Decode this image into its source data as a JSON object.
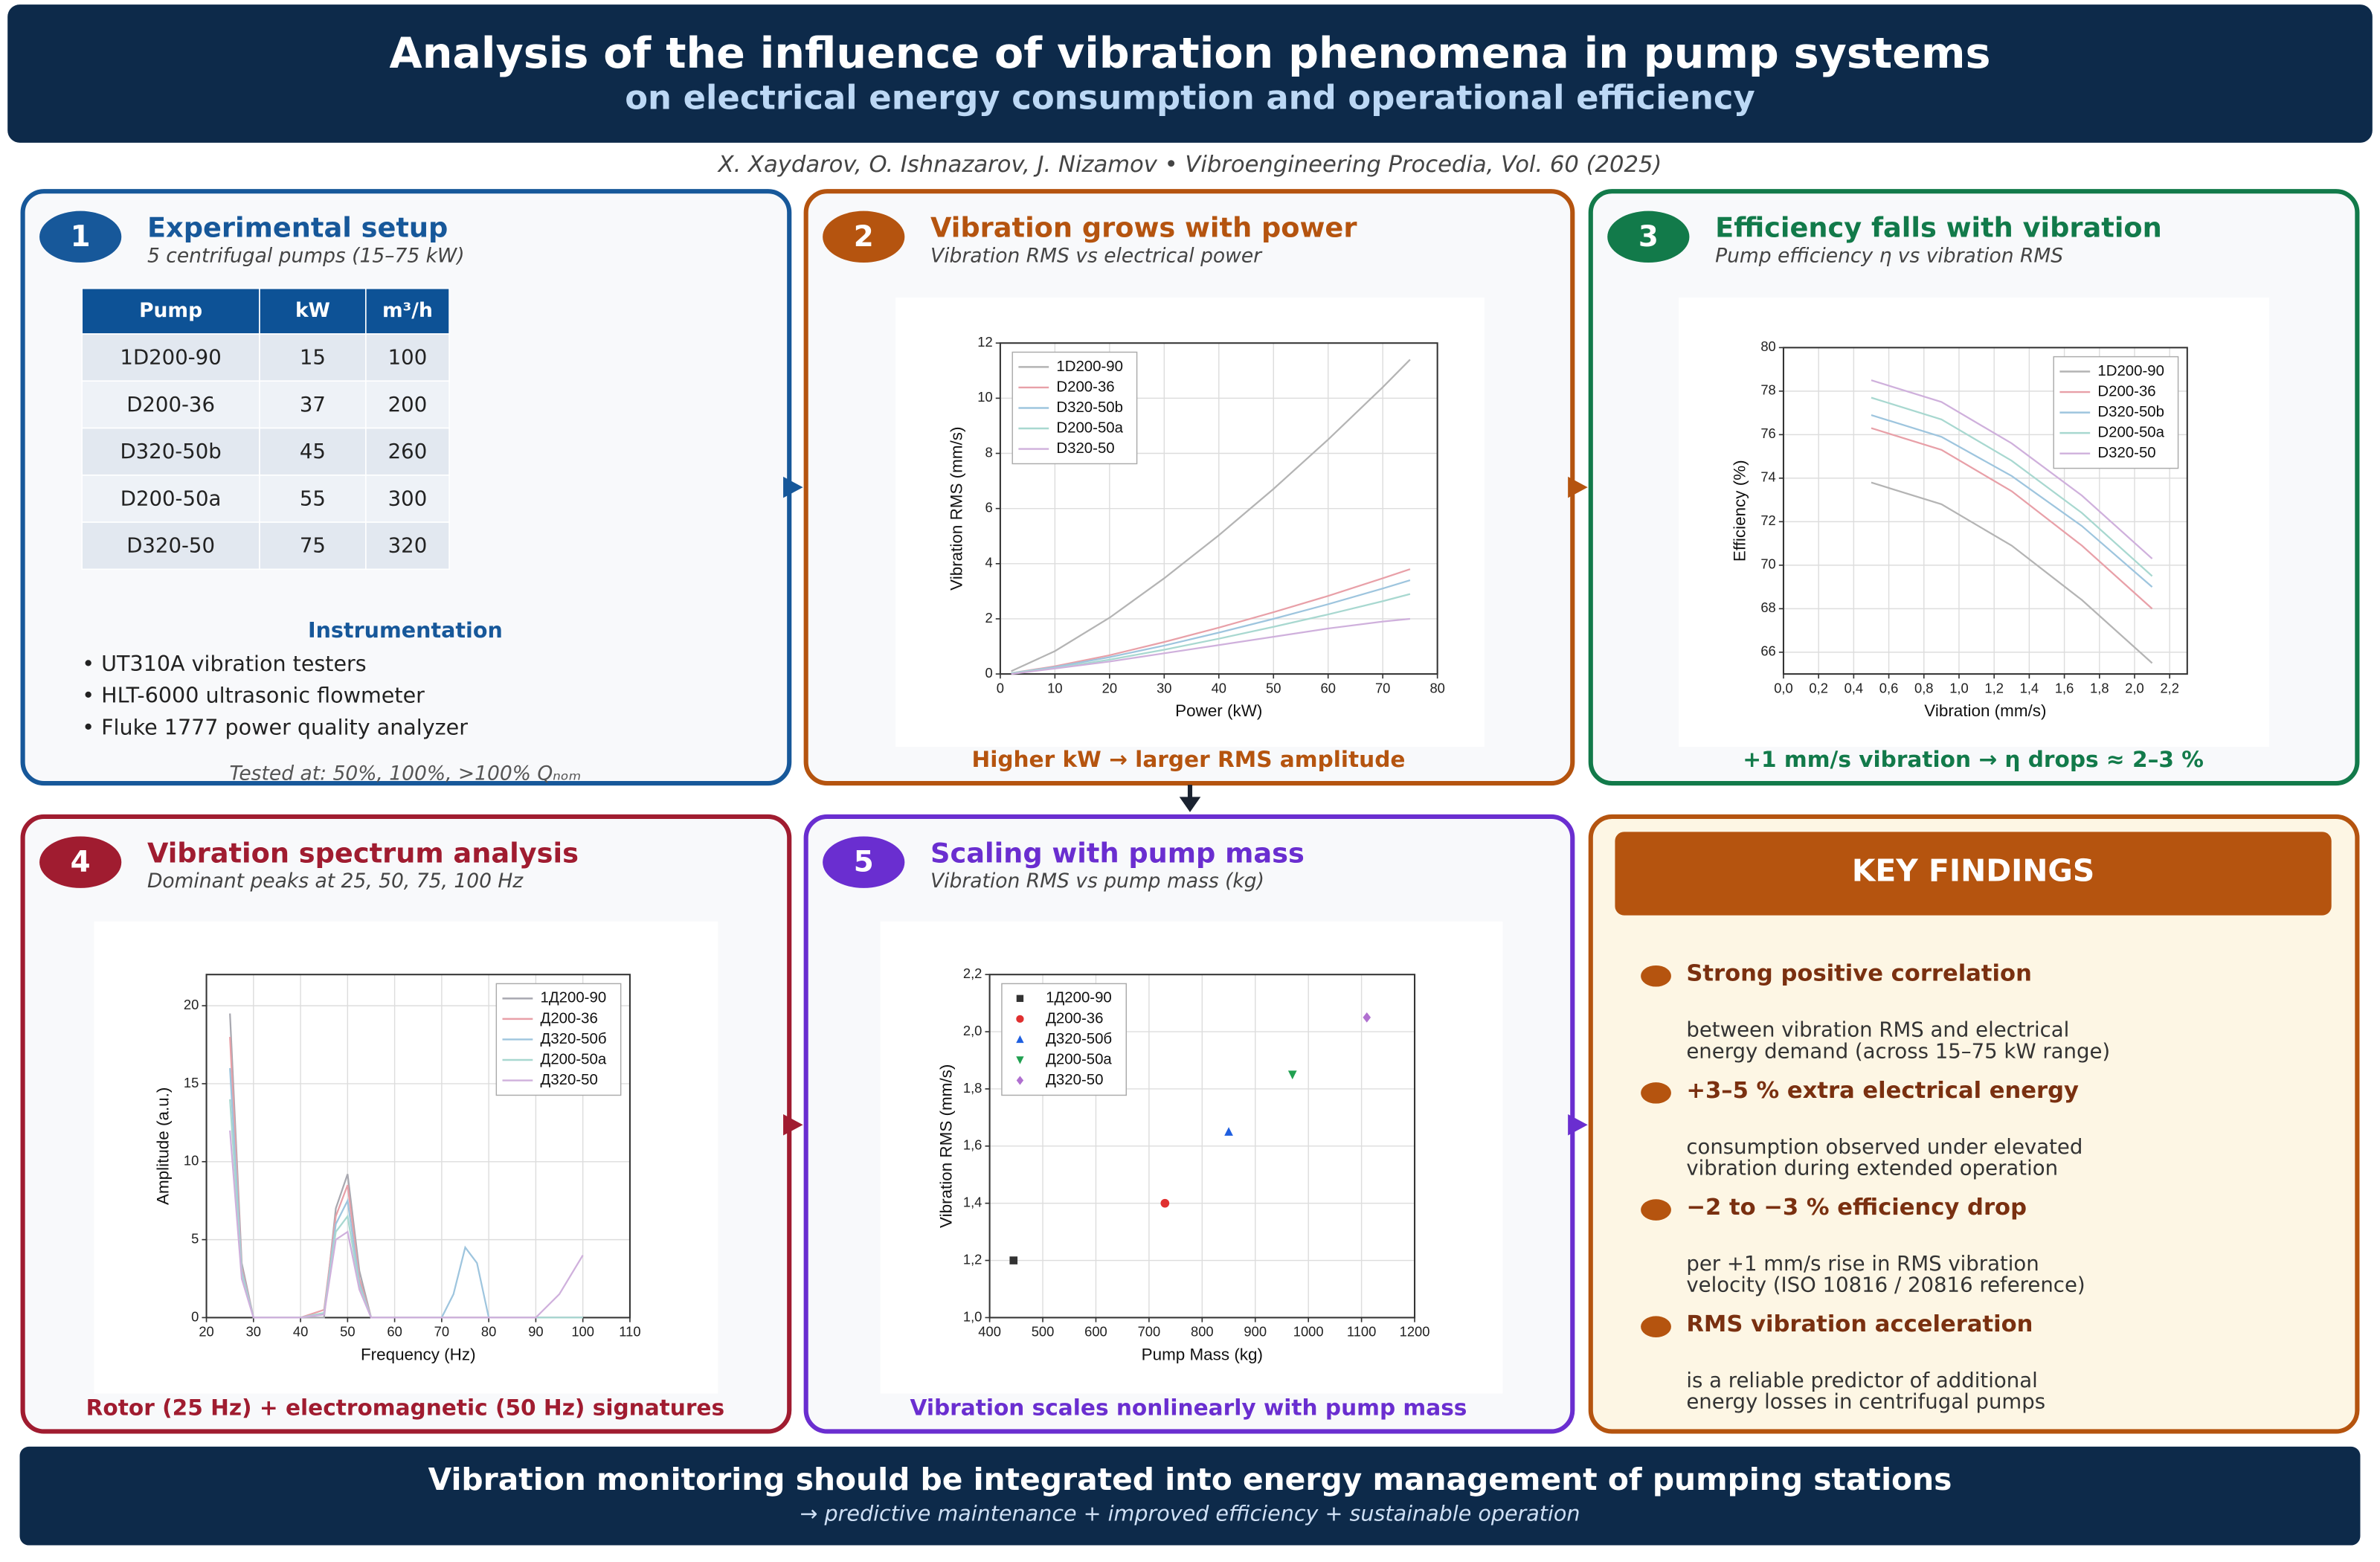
{
  "header": {
    "title": "Analysis of the influence of vibration phenomena in pump systems",
    "subtitle": "on electrical energy consumption and operational efficiency",
    "citation": "X. Xaydarov, O. Ishnazarov, J. Nizamov  •  Vibroengineering Procedia, Vol. 60 (2025)"
  },
  "panels": [
    {
      "number": "1",
      "title": "Experimental setup",
      "subtitle": "5 centrifugal pumps (15–75 kW)",
      "color": "#17589a"
    },
    {
      "number": "2",
      "title": "Vibration grows with power",
      "subtitle": "Vibration RMS vs electrical power",
      "caption": "Higher kW  →  larger RMS amplitude",
      "color": "#b5540f"
    },
    {
      "number": "3",
      "title": "Efficiency falls with vibration",
      "subtitle": "Pump efficiency η vs vibration RMS",
      "caption": "+1 mm/s vibration  →  η drops ≈ 2–3 %",
      "color": "#127a4a"
    },
    {
      "number": "4",
      "title": "Vibration spectrum analysis",
      "subtitle": "Dominant peaks at 25, 50, 75, 100 Hz",
      "caption": "Rotor (25 Hz) + electromagnetic (50 Hz) signatures",
      "color": "#a01c30"
    },
    {
      "number": "5",
      "title": "Scaling with pump mass",
      "subtitle": "Vibration RMS vs pump mass (kg)",
      "caption": "Vibration scales nonlinearly with pump mass",
      "color": "#6a2ed0"
    }
  ],
  "setup": {
    "table": {
      "columns": [
        "Pump",
        "kW",
        "m³/h"
      ],
      "rows": [
        [
          "1D200-90",
          15,
          100
        ],
        [
          "D200-36",
          37,
          200
        ],
        [
          "D320-50b",
          45,
          260
        ],
        [
          "D200-50a",
          55,
          300
        ],
        [
          "D320-50",
          75,
          320
        ]
      ]
    },
    "instrumentation_title": "Instrumentation",
    "instrumentation": [
      "• UT310A vibration testers",
      "• HLT-6000 ultrasonic flowmeter",
      "• Fluke 1777 power quality analyzer"
    ],
    "note": "Tested at: 50%, 100%, >100% Qₙₒₘ"
  },
  "key_findings": {
    "title": "KEY FINDINGS",
    "items": [
      {
        "heading": "Strong positive correlation",
        "lines": [
          "between vibration RMS and electrical",
          "energy demand (across 15–75 kW range)"
        ]
      },
      {
        "heading": "+3–5 % extra electrical energy",
        "lines": [
          "consumption observed under elevated",
          "vibration during extended operation"
        ]
      },
      {
        "heading": "−2 to −3 % efficiency drop",
        "lines": [
          "per +1 mm/s rise in RMS vibration",
          "velocity (ISO 10816 / 20816 reference)"
        ]
      },
      {
        "heading": "RMS vibration acceleration",
        "lines": [
          "is a reliable predictor of additional",
          "energy losses in centrifugal pumps"
        ]
      }
    ]
  },
  "footer": {
    "main": "Vibration monitoring should be integrated into energy management of pumping stations",
    "sub": "→ predictive maintenance + improved efficiency + sustainable operation"
  },
  "chart_data": [
    {
      "type": "line",
      "x_label": "Power (kW)",
      "y_label": "Vibration RMS (mm/s)",
      "xlim": [
        0,
        80
      ],
      "ylim": [
        0,
        12
      ],
      "xticks": [
        0,
        10,
        20,
        30,
        40,
        50,
        60,
        70,
        80
      ],
      "yticks": [
        0,
        2,
        4,
        6,
        8,
        10,
        12
      ],
      "grid": true,
      "legend": "upper left",
      "x": [
        2,
        10,
        20,
        30,
        40,
        50,
        60,
        70,
        75
      ],
      "series": [
        {
          "name": "1D200-90",
          "color": "#b4b4b4",
          "values": [
            0.1,
            0.83,
            2.04,
            3.47,
            5.03,
            6.71,
            8.5,
            10.4,
            11.4
          ]
        },
        {
          "name": "D200-36",
          "color": "#e8a0a8",
          "values": [
            0.03,
            0.28,
            0.68,
            1.16,
            1.68,
            2.24,
            2.83,
            3.47,
            3.8
          ]
        },
        {
          "name": "D320-50b",
          "color": "#9ec5de",
          "values": [
            0.03,
            0.25,
            0.61,
            1.03,
            1.5,
            2.0,
            2.53,
            3.1,
            3.4
          ]
        },
        {
          "name": "D200-50a",
          "color": "#a8d8d0",
          "values": [
            0.03,
            0.21,
            0.52,
            0.88,
            1.28,
            1.71,
            2.16,
            2.64,
            2.9
          ]
        },
        {
          "name": "D320-50",
          "color": "#cfb0dc",
          "values": [
            0.0,
            0.2,
            0.45,
            0.75,
            1.05,
            1.35,
            1.65,
            1.9,
            2.0
          ]
        }
      ]
    },
    {
      "type": "line",
      "x_label": "Vibration (mm/s)",
      "y_label": "Efficiency (%)",
      "xlim": [
        0,
        2.3
      ],
      "ylim": [
        65,
        80
      ],
      "xticks": [
        {
          "value": 0,
          "label": "0,0"
        },
        {
          "value": 0.2,
          "label": "0,2"
        },
        {
          "value": 0.4,
          "label": "0,4"
        },
        {
          "value": 0.6,
          "label": "0,6"
        },
        {
          "value": 0.8,
          "label": "0,8"
        },
        {
          "value": 1.0,
          "label": "1,0"
        },
        {
          "value": 1.2,
          "label": "1,2"
        },
        {
          "value": 1.4,
          "label": "1,4"
        },
        {
          "value": 1.6,
          "label": "1,6"
        },
        {
          "value": 1.8,
          "label": "1,8"
        },
        {
          "value": 2.0,
          "label": "2,0"
        },
        {
          "value": 2.2,
          "label": "2,2"
        }
      ],
      "yticks": [
        66,
        68,
        70,
        72,
        74,
        76,
        78,
        80
      ],
      "grid": true,
      "legend": "upper right",
      "x": [
        0.5,
        0.9,
        1.3,
        1.7,
        2.1
      ],
      "series": [
        {
          "name": "1D200-90",
          "color": "#b4b4b4",
          "values": [
            73.8,
            72.8,
            70.9,
            68.4,
            65.5
          ]
        },
        {
          "name": "D200-36",
          "color": "#e8a0a8",
          "values": [
            76.3,
            75.3,
            73.4,
            70.9,
            68.0
          ]
        },
        {
          "name": "D320-50b",
          "color": "#9ec5de",
          "values": [
            76.9,
            75.9,
            74.1,
            71.8,
            69.0
          ]
        },
        {
          "name": "D200-50a",
          "color": "#a8d8d0",
          "values": [
            77.7,
            76.7,
            74.8,
            72.4,
            69.5
          ]
        },
        {
          "name": "D320-50",
          "color": "#cfb0dc",
          "values": [
            78.5,
            77.5,
            75.6,
            73.2,
            70.3
          ]
        }
      ]
    },
    {
      "type": "line",
      "x_label": "Frequency (Hz)",
      "y_label": "Amplitude (a.u.)",
      "xlim": [
        20,
        110
      ],
      "ylim": [
        0,
        22
      ],
      "xticks": [
        20,
        30,
        40,
        50,
        60,
        70,
        80,
        90,
        100,
        110
      ],
      "yticks": [
        0,
        5,
        10,
        15,
        20
      ],
      "grid": true,
      "legend": "upper right",
      "x": [
        25,
        27.5,
        30,
        40,
        45,
        47.5,
        50,
        52.5,
        55,
        60,
        70,
        72.5,
        75,
        77.5,
        80,
        90,
        95,
        100
      ],
      "series": [
        {
          "name": "1Д200-90",
          "color": "#a8a8b0",
          "values": [
            19.5,
            3.5,
            0,
            0,
            0,
            7,
            9.2,
            3,
            0,
            0,
            0,
            0,
            0,
            0,
            0,
            0,
            0,
            0
          ]
        },
        {
          "name": "Д200-36",
          "color": "#e8a0a8",
          "values": [
            18,
            3.2,
            0,
            0,
            0.5,
            6.5,
            8.5,
            2.5,
            0,
            0,
            0,
            0,
            0,
            0,
            0,
            0,
            0,
            0
          ]
        },
        {
          "name": "Д320-50б",
          "color": "#9ec5de",
          "values": [
            16,
            3,
            0,
            0,
            0.3,
            6,
            7.5,
            2.2,
            0,
            0,
            0,
            1.5,
            4.5,
            3.5,
            0,
            0,
            0,
            0
          ]
        },
        {
          "name": "Д200-50а",
          "color": "#a8d8d0",
          "values": [
            14,
            2.8,
            0,
            0,
            0.3,
            5.5,
            6.5,
            2,
            0,
            0,
            0,
            0,
            0,
            0,
            0,
            0,
            0,
            0
          ]
        },
        {
          "name": "Д320-50",
          "color": "#cfb0dc",
          "values": [
            12,
            2.5,
            0,
            0,
            0.2,
            5,
            5.5,
            1.8,
            0,
            0,
            0,
            0,
            0,
            0,
            0,
            0,
            1.5,
            4
          ]
        }
      ]
    },
    {
      "type": "scatter",
      "x_label": "Pump Mass (kg)",
      "y_label": "Vibration RMS (mm/s)",
      "xlim": [
        400,
        1200
      ],
      "ylim": [
        1.0,
        2.2
      ],
      "xticks": [
        400,
        500,
        600,
        700,
        800,
        900,
        1000,
        1100,
        1200
      ],
      "yticks": [
        {
          "value": 1.0,
          "label": "1,0"
        },
        {
          "value": 1.2,
          "label": "1,2"
        },
        {
          "value": 1.4,
          "label": "1,4"
        },
        {
          "value": 1.6,
          "label": "1,6"
        },
        {
          "value": 1.8,
          "label": "1,8"
        },
        {
          "value": 2.0,
          "label": "2,0"
        },
        {
          "value": 2.2,
          "label": "2,2"
        }
      ],
      "grid": true,
      "legend": "upper left",
      "series": [
        {
          "name": "1Д200-90",
          "color": "#333333",
          "marker": "square",
          "x": [
            445
          ],
          "values": [
            1.2
          ]
        },
        {
          "name": "Д200-36",
          "color": "#e03030",
          "marker": "circle",
          "x": [
            730
          ],
          "values": [
            1.4
          ]
        },
        {
          "name": "Д320-50б",
          "color": "#1f5fe0",
          "marker": "triangle",
          "x": [
            850
          ],
          "values": [
            1.65
          ]
        },
        {
          "name": "Д200-50а",
          "color": "#20a050",
          "marker": "triangle-down",
          "x": [
            970
          ],
          "values": [
            1.85
          ]
        },
        {
          "name": "Д320-50",
          "color": "#b070d0",
          "marker": "diamond",
          "x": [
            1110
          ],
          "values": [
            2.05
          ]
        }
      ]
    }
  ]
}
